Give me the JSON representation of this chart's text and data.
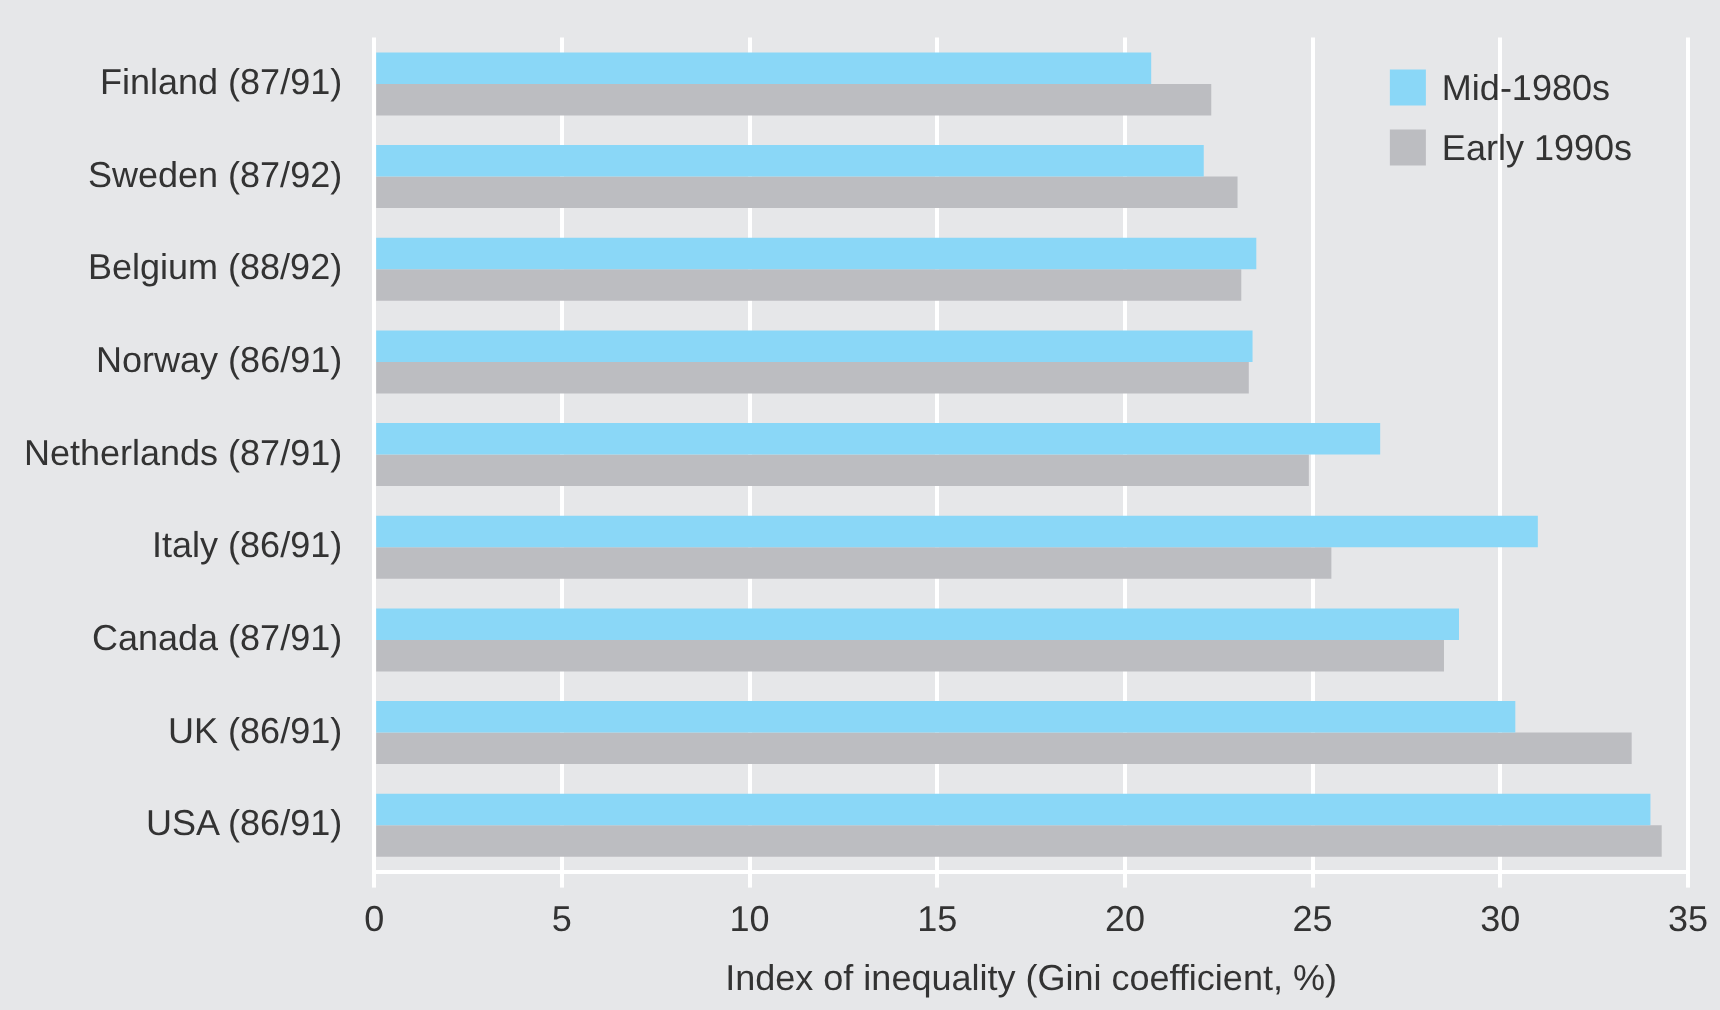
{
  "chart_data": {
    "type": "bar",
    "orientation": "horizontal",
    "xlabel": "Index of inequality (Gini coefficient, %)",
    "categories": [
      "Finland (87/91)",
      "Sweden (87/92)",
      "Belgium (88/92)",
      "Norway (86/91)",
      "Netherlands (87/91)",
      "Italy (86/91)",
      "Canada (87/91)",
      "UK (86/91)",
      "USA (86/91)"
    ],
    "series": [
      {
        "name": "Mid-1980s",
        "color": "#8ad7f7",
        "values": [
          20.7,
          22.1,
          23.5,
          23.4,
          26.8,
          31.0,
          28.9,
          30.4,
          34.0
        ]
      },
      {
        "name": "Early 1990s",
        "color": "#bcbdc1",
        "values": [
          22.3,
          23.0,
          23.1,
          23.3,
          24.9,
          25.5,
          28.5,
          33.5,
          34.3
        ]
      }
    ],
    "xlim": [
      0,
      35
    ],
    "xticks": [
      0,
      5,
      10,
      15,
      20,
      25,
      30,
      35
    ],
    "grid": "x",
    "legend": "top right"
  }
}
